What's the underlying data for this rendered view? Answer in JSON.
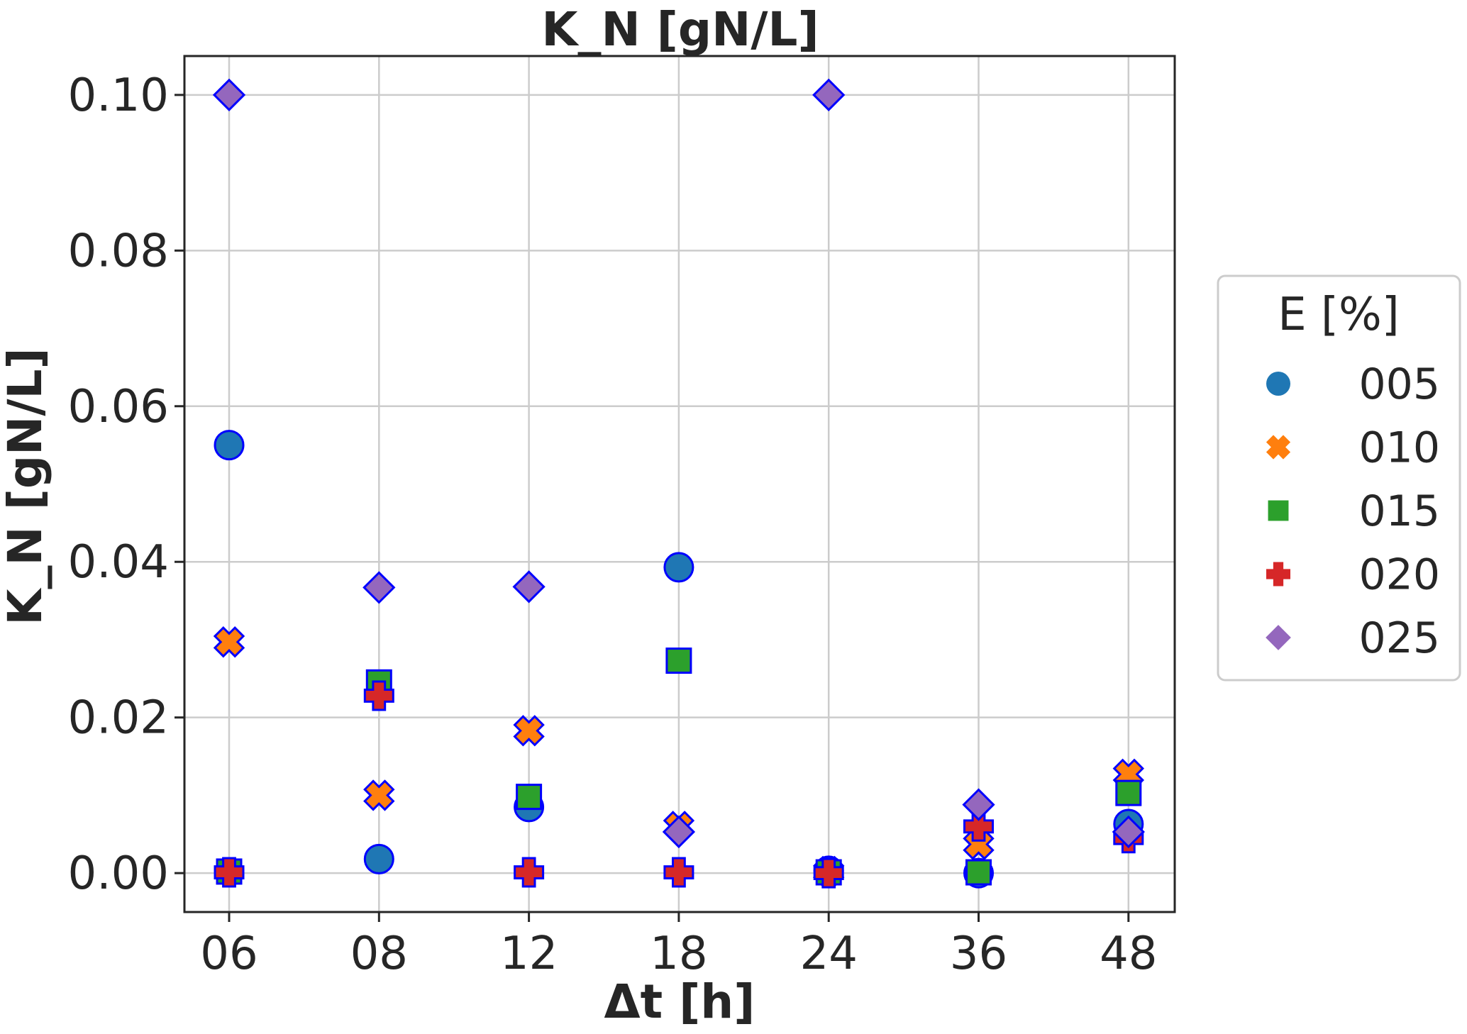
{
  "chart_data": {
    "type": "scatter",
    "title": "K_N [gN/L]",
    "xlabel": "Δt [h]",
    "ylabel": "K_N [gN/L]",
    "categories": [
      "06",
      "08",
      "12",
      "18",
      "24",
      "36",
      "48"
    ],
    "ylim": [
      -0.005,
      0.105
    ],
    "yticks": [
      "0.00",
      "0.02",
      "0.04",
      "0.06",
      "0.08",
      "0.10"
    ],
    "ytick_values": [
      0,
      0.02,
      0.04,
      0.06,
      0.08,
      0.1
    ],
    "grid": true,
    "legend": {
      "title": "E [%]",
      "placement": "right"
    },
    "series": [
      {
        "name": "005",
        "marker": "circle",
        "color": "#1f77b4",
        "values": [
          0.055,
          0.0018,
          0.0085,
          0.0393,
          0.0003,
          0.0,
          0.0063
        ]
      },
      {
        "name": "010",
        "marker": "x",
        "color": "#ff7f0e",
        "values": [
          0.0297,
          0.01,
          0.0183,
          0.006,
          0.0002,
          0.0037,
          0.0127
        ]
      },
      {
        "name": "015",
        "marker": "square",
        "color": "#2ca02c",
        "values": [
          0.0002,
          0.0245,
          0.0098,
          0.0273,
          0.0001,
          0.0001,
          0.0103
        ]
      },
      {
        "name": "020",
        "marker": "plus",
        "color": "#d62728",
        "values": [
          0.0001,
          0.0228,
          0.0001,
          0.0001,
          0.0,
          0.006,
          0.0045
        ]
      },
      {
        "name": "025",
        "marker": "diamond",
        "color": "#9467bd",
        "values": [
          0.1,
          0.0367,
          0.0368,
          0.0053,
          0.1,
          0.0088,
          0.0053
        ]
      }
    ],
    "marker_edge_color": "#0000ff"
  }
}
